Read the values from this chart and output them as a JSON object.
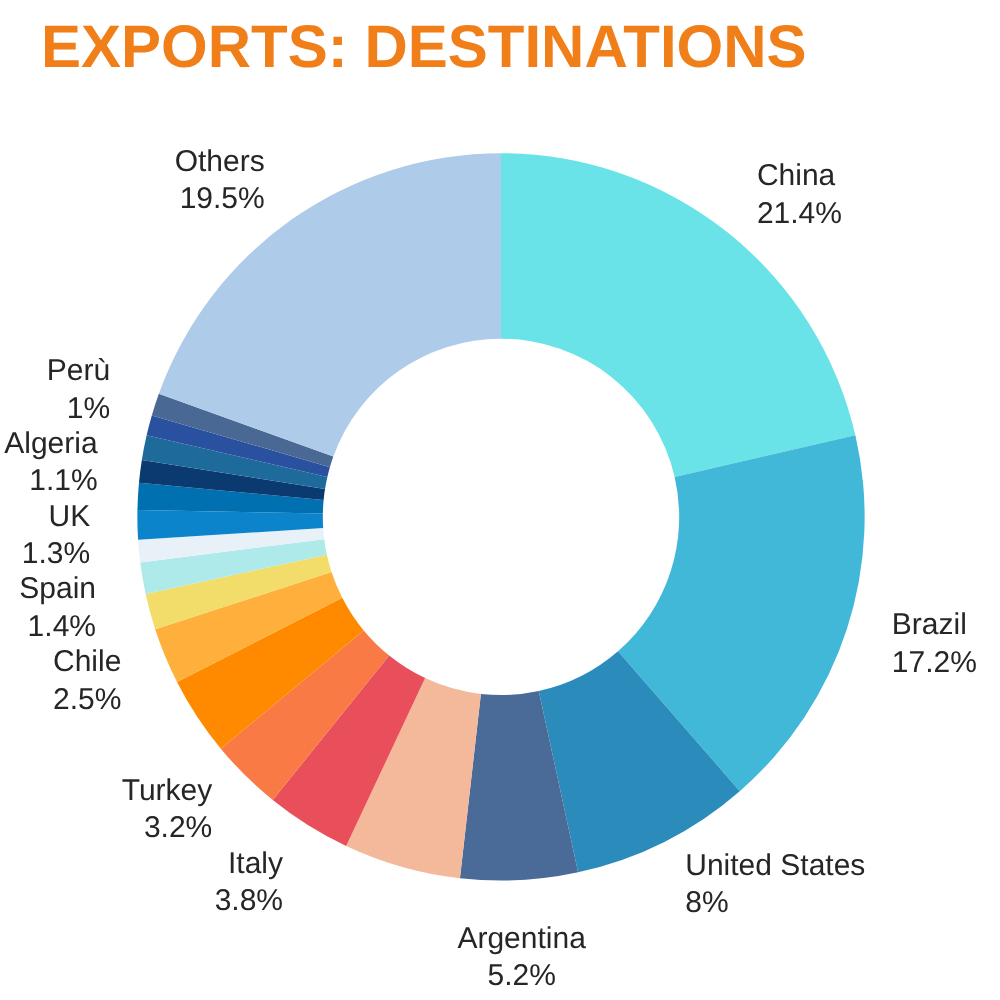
{
  "chart_data": {
    "type": "donut",
    "title": "EXPORTS: DESTINATIONS",
    "categories": [
      "China",
      "Brazil",
      "United States",
      "Argentina",
      null,
      "Italy",
      "Turkey",
      null,
      "Chile",
      null,
      "Spain",
      null,
      "UK",
      null,
      null,
      "Algeria",
      null,
      "Perù",
      "Others"
    ],
    "values": [
      21.4,
      17.2,
      8,
      5.2,
      5.2,
      3.8,
      3.2,
      3.5,
      2.5,
      1.6,
      1.4,
      1.0,
      1.3,
      1.2,
      1.0,
      1.1,
      0.9,
      1,
      19.5
    ],
    "value_labels": [
      "21.4%",
      "17.2%",
      "8%",
      "5.2%",
      null,
      "3.8%",
      "3.2%",
      null,
      "2.5%",
      null,
      "1.4%",
      null,
      "1.3%",
      null,
      null,
      "1.1%",
      null,
      "1%",
      "19.5%"
    ],
    "colors": [
      "#6ae3e8",
      "#41b8d8",
      "#2b8cbb",
      "#4a6a98",
      "#f4b89a",
      "#e84f5a",
      "#f97a45",
      "#ff8a00",
      "#ffb03c",
      "#f2dc6a",
      "#aeeaea",
      "#e8f0f8",
      "#0c84cc",
      "#0070b0",
      "#0a3a70",
      "#1e6a9a",
      "#2a50a0",
      "#4a6894",
      "#aecbea"
    ],
    "legend": false
  }
}
